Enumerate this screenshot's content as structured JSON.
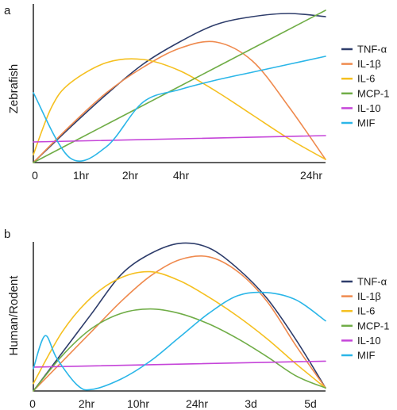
{
  "chart_data": [
    {
      "panel": "a",
      "type": "line",
      "title": "",
      "xlabel": "",
      "ylabel": "Zebrafish",
      "x_ticks": [
        "0",
        "1hr",
        "2hr",
        "4hr",
        "24hr"
      ],
      "xlim": [
        0,
        4
      ],
      "ylim": [
        0,
        1
      ],
      "grid": false,
      "legend_position": "right",
      "series": [
        {
          "name": "TNF-α",
          "color": "#2e3d6b",
          "x": [
            0,
            0.5,
            1,
            1.5,
            2,
            2.5,
            3,
            3.5,
            4
          ],
          "y": [
            0,
            0.22,
            0.43,
            0.62,
            0.76,
            0.87,
            0.92,
            0.94,
            0.92
          ]
        },
        {
          "name": "IL-1β",
          "color": "#ef8a4e",
          "x": [
            0,
            0.5,
            1,
            1.5,
            2,
            2.5,
            3,
            3.5,
            4
          ],
          "y": [
            0,
            0.23,
            0.44,
            0.6,
            0.72,
            0.76,
            0.64,
            0.35,
            0.02
          ]
        },
        {
          "name": "IL-6",
          "color": "#f5c020",
          "x": [
            0,
            0.25,
            0.5,
            1,
            1.5,
            2,
            2.5,
            3,
            3.5,
            4
          ],
          "y": [
            0.05,
            0.35,
            0.5,
            0.63,
            0.65,
            0.58,
            0.45,
            0.3,
            0.15,
            0.02
          ]
        },
        {
          "name": "MCP-1",
          "color": "#70ad47",
          "x": [
            0,
            1,
            2,
            3,
            4
          ],
          "y": [
            0,
            0.24,
            0.48,
            0.72,
            0.96
          ]
        },
        {
          "name": "IL-10",
          "color": "#c545d9",
          "x": [
            0,
            4
          ],
          "y": [
            0.13,
            0.17
          ]
        },
        {
          "name": "MIF",
          "color": "#2bb6e8",
          "x": [
            0,
            0.5,
            1,
            1.5,
            2,
            2.5,
            3,
            3.5,
            4
          ],
          "y": [
            0.44,
            0.03,
            0.1,
            0.38,
            0.46,
            0.52,
            0.57,
            0.62,
            0.67
          ]
        }
      ]
    },
    {
      "panel": "b",
      "type": "line",
      "title": "",
      "xlabel": "",
      "ylabel": "Human/Rodent",
      "x_ticks": [
        "0",
        "2hr",
        "10hr",
        "24hr",
        "3d",
        "5d"
      ],
      "xlim": [
        0,
        5
      ],
      "ylim": [
        0,
        1
      ],
      "grid": false,
      "legend_position": "right",
      "series": [
        {
          "name": "TNF-α",
          "color": "#2e3d6b",
          "x": [
            0,
            0.5,
            1,
            1.5,
            2,
            2.5,
            3,
            3.5,
            4,
            4.5,
            5
          ],
          "y": [
            0,
            0.26,
            0.52,
            0.78,
            0.92,
            0.99,
            0.96,
            0.82,
            0.62,
            0.34,
            0.02
          ]
        },
        {
          "name": "IL-1β",
          "color": "#ef8a4e",
          "x": [
            0,
            0.5,
            1,
            1.5,
            2,
            2.5,
            3,
            3.5,
            4,
            4.5,
            5
          ],
          "y": [
            0,
            0.2,
            0.4,
            0.6,
            0.77,
            0.88,
            0.9,
            0.8,
            0.6,
            0.3,
            0.02
          ]
        },
        {
          "name": "IL-6",
          "color": "#f5c020",
          "x": [
            0,
            0.5,
            1,
            1.5,
            2,
            2.5,
            3,
            3.5,
            4,
            4.5,
            5
          ],
          "y": [
            0.05,
            0.4,
            0.63,
            0.76,
            0.8,
            0.74,
            0.63,
            0.5,
            0.35,
            0.18,
            0.02
          ]
        },
        {
          "name": "MCP-1",
          "color": "#70ad47",
          "x": [
            0,
            0.5,
            1,
            1.5,
            2,
            2.5,
            3,
            3.5,
            4,
            4.5,
            5
          ],
          "y": [
            0,
            0.24,
            0.42,
            0.52,
            0.55,
            0.52,
            0.45,
            0.35,
            0.23,
            0.1,
            0.02
          ]
        },
        {
          "name": "IL-10",
          "color": "#c545d9",
          "x": [
            0,
            5
          ],
          "y": [
            0.16,
            0.2
          ]
        },
        {
          "name": "MIF",
          "color": "#2bb6e8",
          "x": [
            0,
            0.2,
            0.4,
            0.75,
            1,
            1.5,
            2,
            2.5,
            3,
            3.5,
            4,
            4.5,
            5
          ],
          "y": [
            0.15,
            0.37,
            0.22,
            0.04,
            0.01,
            0.08,
            0.2,
            0.36,
            0.52,
            0.64,
            0.66,
            0.61,
            0.47
          ]
        }
      ]
    }
  ]
}
